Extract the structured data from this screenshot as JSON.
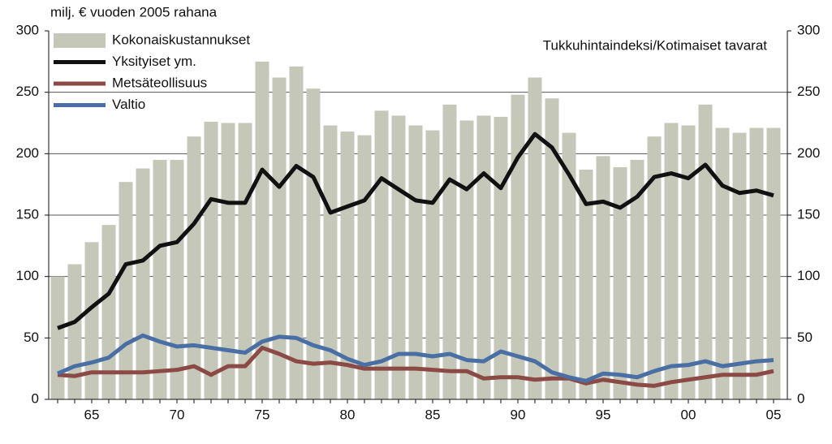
{
  "chart_data": {
    "type": "bar",
    "y_label": "milj. € vuoden 2005 rahana",
    "annotation": "Tukkuhintaindeksi/Kotimaiset tavarat",
    "categories": [
      null,
      null,
      "65",
      null,
      null,
      null,
      null,
      "70",
      null,
      null,
      null,
      null,
      "75",
      null,
      null,
      null,
      null,
      "80",
      null,
      null,
      null,
      null,
      "85",
      null,
      null,
      null,
      null,
      "90",
      null,
      null,
      null,
      null,
      "95",
      null,
      null,
      null,
      null,
      "00",
      null,
      null,
      null,
      null,
      "05"
    ],
    "series": [
      {
        "name": "Kokonaiskustannukset",
        "type": "bar",
        "color": "#c5c8b8",
        "values": [
          100,
          110,
          128,
          142,
          177,
          188,
          195,
          195,
          214,
          226,
          225,
          225,
          275,
          262,
          271,
          253,
          223,
          218,
          215,
          235,
          231,
          223,
          219,
          240,
          227,
          231,
          230,
          248,
          262,
          245,
          217,
          187,
          198,
          189,
          195,
          214,
          225,
          223,
          240,
          221,
          217,
          221,
          221
        ]
      },
      {
        "name": "Yksityiset ym.",
        "type": "line",
        "color": "#111111",
        "values": [
          58,
          63,
          75,
          86,
          110,
          113,
          125,
          128,
          143,
          163,
          160,
          160,
          187,
          173,
          190,
          181,
          152,
          157,
          162,
          180,
          171,
          162,
          160,
          179,
          171,
          184,
          172,
          197,
          216,
          205,
          183,
          159,
          161,
          156,
          165,
          181,
          184,
          180,
          191,
          174,
          168,
          170,
          166
        ]
      },
      {
        "name": "Metsäteollisuus",
        "type": "line",
        "color": "#8b4a45",
        "values": [
          20,
          19,
          22,
          22,
          22,
          22,
          23,
          24,
          27,
          20,
          27,
          27,
          42,
          37,
          31,
          29,
          30,
          28,
          25,
          25,
          25,
          25,
          24,
          23,
          23,
          17,
          18,
          18,
          16,
          17,
          17,
          13,
          16,
          14,
          12,
          11,
          14,
          16,
          18,
          20,
          20,
          20,
          23
        ]
      },
      {
        "name": "Valtio",
        "type": "line",
        "color": "#4a6fa5",
        "values": [
          21,
          27,
          30,
          34,
          45,
          52,
          47,
          43,
          44,
          42,
          40,
          38,
          47,
          51,
          50,
          44,
          40,
          33,
          28,
          31,
          37,
          37,
          35,
          37,
          32,
          31,
          39,
          35,
          31,
          22,
          18,
          15,
          21,
          20,
          18,
          23,
          27,
          28,
          31,
          27,
          29,
          31,
          32
        ]
      }
    ],
    "ylim": [
      0,
      300
    ],
    "yticks": [
      0,
      50,
      100,
      150,
      200,
      250,
      300
    ],
    "grid": true
  }
}
